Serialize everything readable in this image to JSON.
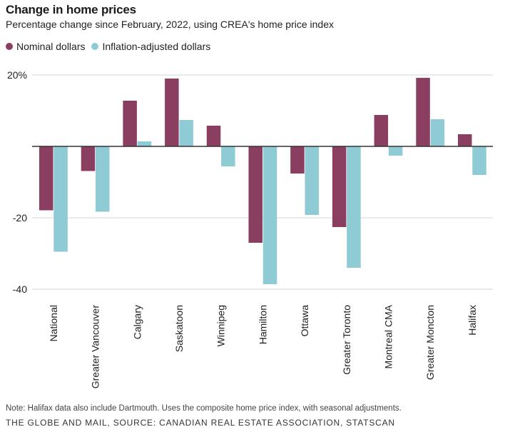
{
  "chart_data": {
    "type": "bar",
    "title": "Change in home prices",
    "subtitle": "Percentage change since February, 2022, using CREA's home price index",
    "xlabel": "",
    "ylabel": "",
    "ylim": [
      -40,
      20
    ],
    "yticks": [
      {
        "value": 20,
        "label": "20%"
      },
      {
        "value": -20,
        "label": "-20"
      },
      {
        "value": -40,
        "label": "-40"
      }
    ],
    "grid": true,
    "legend_position": "top-left",
    "categories": [
      "National",
      "Greater Vancouver",
      "Calgary",
      "Saskatoon",
      "Winnipeg",
      "Hamilton",
      "Ottawa",
      "Greater Toronto",
      "Montreal CMA",
      "Greater Moncton",
      "Halifax"
    ],
    "series": [
      {
        "name": "Nominal dollars",
        "color": "#8a3e60",
        "values": [
          -17.9,
          -6.9,
          12.8,
          19.0,
          5.8,
          -27.0,
          -7.6,
          -22.6,
          8.8,
          19.2,
          3.4
        ]
      },
      {
        "name": "Inflation-adjusted dollars",
        "color": "#8fcbd4",
        "values": [
          -29.5,
          -18.3,
          1.4,
          7.4,
          -5.6,
          -38.6,
          -19.2,
          -34.0,
          -2.6,
          7.6,
          -8.0
        ]
      }
    ],
    "note": "Note: Halifax data also include Dartmouth. Uses the composite home price index, with seasonal adjustments.",
    "source": "THE GLOBE AND MAIL, SOURCE: CANADIAN REAL ESTATE ASSOCIATION, STATSCAN"
  }
}
